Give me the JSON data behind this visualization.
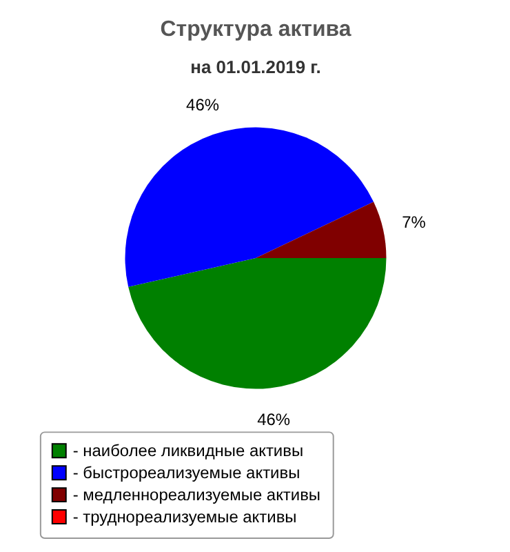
{
  "chart_data": {
    "type": "pie",
    "title": "Структура актива",
    "subtitle": "на 01.01.2019 г.",
    "categories": [
      "- наиболее ликвидные активы",
      "- быстрореализуемые активы",
      "- медленнореализуемые активы",
      "- труднореализуемые активы"
    ],
    "values": [
      46,
      46,
      7,
      0
    ],
    "colors": [
      "#008000",
      "#0000ff",
      "#800000",
      "#ff0000"
    ],
    "value_labels": [
      "46%",
      "46%",
      "7%",
      null
    ],
    "legend": "bottom"
  }
}
